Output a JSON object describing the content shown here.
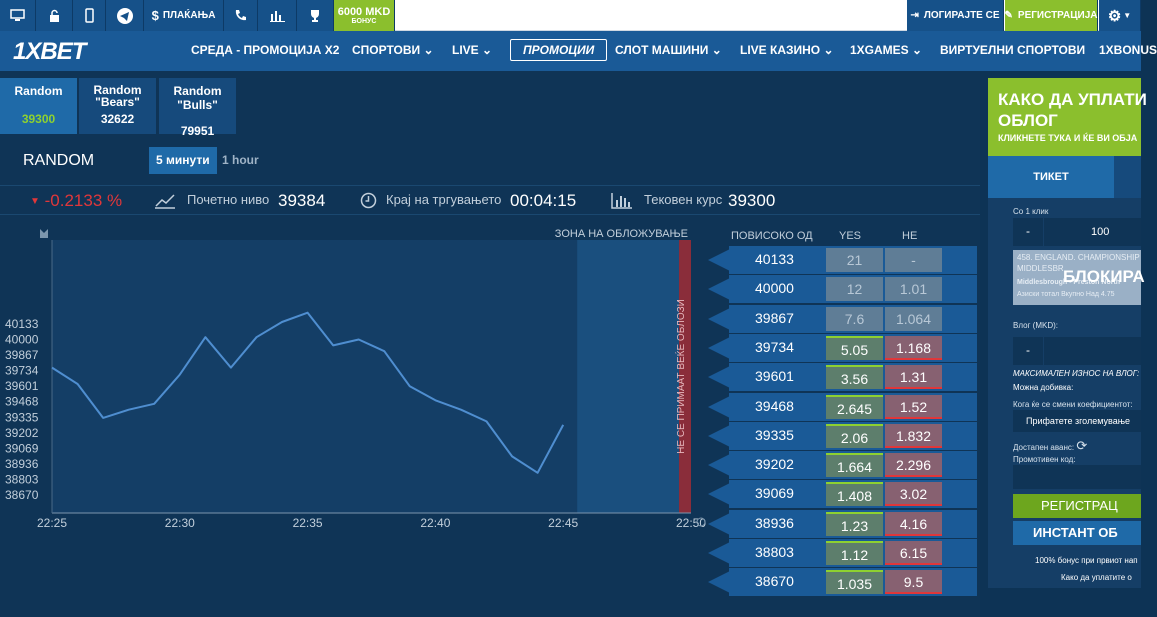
{
  "topbar": {
    "pay_label": "ПЛАЌАЊА",
    "bonus_amount": "6000 MKD",
    "bonus_word": "БОНУС",
    "login_label": "ЛОГИРАЈТЕ СЕ",
    "register_label": "РЕГИСТРАЦИЈА"
  },
  "nav": {
    "logo": "1XBET",
    "items": [
      "СРЕДА - ПРОМОЦИЈА X2",
      "СПОРТОВИ",
      "LIVE",
      "ПРОМОЦИИ",
      "СЛОТ МАШИНИ",
      "LIVE КАЗИНО",
      "1XGAMES",
      "ВИРТУЕЛНИ СПОРТОВИ",
      "1XBONUS"
    ]
  },
  "symbols": [
    {
      "name": "Random",
      "value": "39300"
    },
    {
      "name": "Random \"Bears\"",
      "value": "32622"
    },
    {
      "name": "Random \"Bulls\"",
      "value": "79951"
    }
  ],
  "game": {
    "title": "RANDOM",
    "tab_5min": "5 минути",
    "tab_1h": "1 hour"
  },
  "stats": {
    "change": "-0.2133",
    "pct": "%",
    "start_label": "Почетно ниво",
    "start_value": "39384",
    "end_label": "Крај на тргувањето",
    "end_value": "00:04:15",
    "current_label": "Тековен курс",
    "current_value": "39300"
  },
  "chart_data": {
    "type": "line",
    "x_ticks": [
      "22:25",
      "22:30",
      "22:35",
      "22:40",
      "22:45",
      "22:50"
    ],
    "y_ticks": [
      40133,
      40000,
      39867,
      39734,
      39601,
      39468,
      39335,
      39202,
      39069,
      38936,
      38803,
      38670
    ],
    "zone_label": "ЗОНА НА ОБЛОЖУВАЊЕ",
    "closed_label": "НЕ СЕ ПРИМААТ ВЕЌЕ ОБЛОЗИ",
    "x": [
      "22:25",
      "22:26",
      "22:27",
      "22:28",
      "22:29",
      "22:30",
      "22:31",
      "22:32",
      "22:33",
      "22:34",
      "22:35",
      "22:36",
      "22:37",
      "22:38",
      "22:39",
      "22:40",
      "22:41",
      "22:42",
      "22:43",
      "22:44",
      "22:45"
    ],
    "y": [
      39760,
      39620,
      39330,
      39400,
      39450,
      39700,
      40020,
      39760,
      40020,
      40150,
      40230,
      39950,
      40000,
      39900,
      39600,
      39480,
      39400,
      39300,
      39000,
      38860,
      39270
    ]
  },
  "bets": {
    "header_price": "ПОВИСОКО ОД",
    "header_yes": "YES",
    "header_no": "НЕ",
    "rows": [
      {
        "level": "40133",
        "yes": "21",
        "no": "-",
        "active": false
      },
      {
        "level": "40000",
        "yes": "12",
        "no": "1.01",
        "active": false
      },
      {
        "level": "39867",
        "yes": "7.6",
        "no": "1.064",
        "active": false
      },
      {
        "level": "39734",
        "yes": "5.05",
        "no": "1.168",
        "active": true
      },
      {
        "level": "39601",
        "yes": "3.56",
        "no": "1.31",
        "active": true
      },
      {
        "level": "39468",
        "yes": "2.645",
        "no": "1.52",
        "active": true
      },
      {
        "level": "39335",
        "yes": "2.06",
        "no": "1.832",
        "active": true
      },
      {
        "level": "39202",
        "yes": "1.664",
        "no": "2.296",
        "active": true
      },
      {
        "level": "39069",
        "yes": "1.408",
        "no": "3.02",
        "active": true
      },
      {
        "level": "38936",
        "yes": "1.23",
        "no": "4.16",
        "active": true
      },
      {
        "level": "38803",
        "yes": "1.12",
        "no": "6.15",
        "active": true
      },
      {
        "level": "38670",
        "yes": "1.035",
        "no": "9.5",
        "active": true
      }
    ]
  },
  "sidebar": {
    "promo_title_1": "КАКО ДА УПЛАТИ",
    "promo_title_2": "ОБЛОГ",
    "promo_sub": "КЛИКНЕТЕ ТУКА И ЌЕ ВИ ОБЈА",
    "tab_ticket": "ТИКЕТ",
    "one_click": "Со 1 клик",
    "minus": "-",
    "amount": "100",
    "ticket_line1": "458. ENGLAND. CHAMPIONSHIP",
    "ticket_line2": "MIDDLESBR",
    "ticket_line3": "Middlesbrough - Preston North",
    "ticket_line4": "Азиски тотал Вкупно Над 4.75",
    "blocked": "БЛОКИРА",
    "stake_label": "Влог (MKD):",
    "stake_minus": "-",
    "max_label": "МАКСИМАЛЕН ИЗНОС НА ВЛОГ:",
    "win_label": "Можна добивка:",
    "coef_label": "Кога ќе се смени коефициентот:",
    "coef_value": "Прифатете зголемување",
    "avail_label": "Достапен аванс:",
    "promo_label": "Промотивен код:",
    "register_btn": "РЕГИСТРАЦ",
    "instant_btn": "ИНСТАНТ ОБ",
    "bonus_note": "100% бонус при првиот нап",
    "how_note": "Како да уплатите о"
  },
  "colors": {
    "up": "#8ed130",
    "down": "#e0373a",
    "accent": "#1a5a97"
  }
}
